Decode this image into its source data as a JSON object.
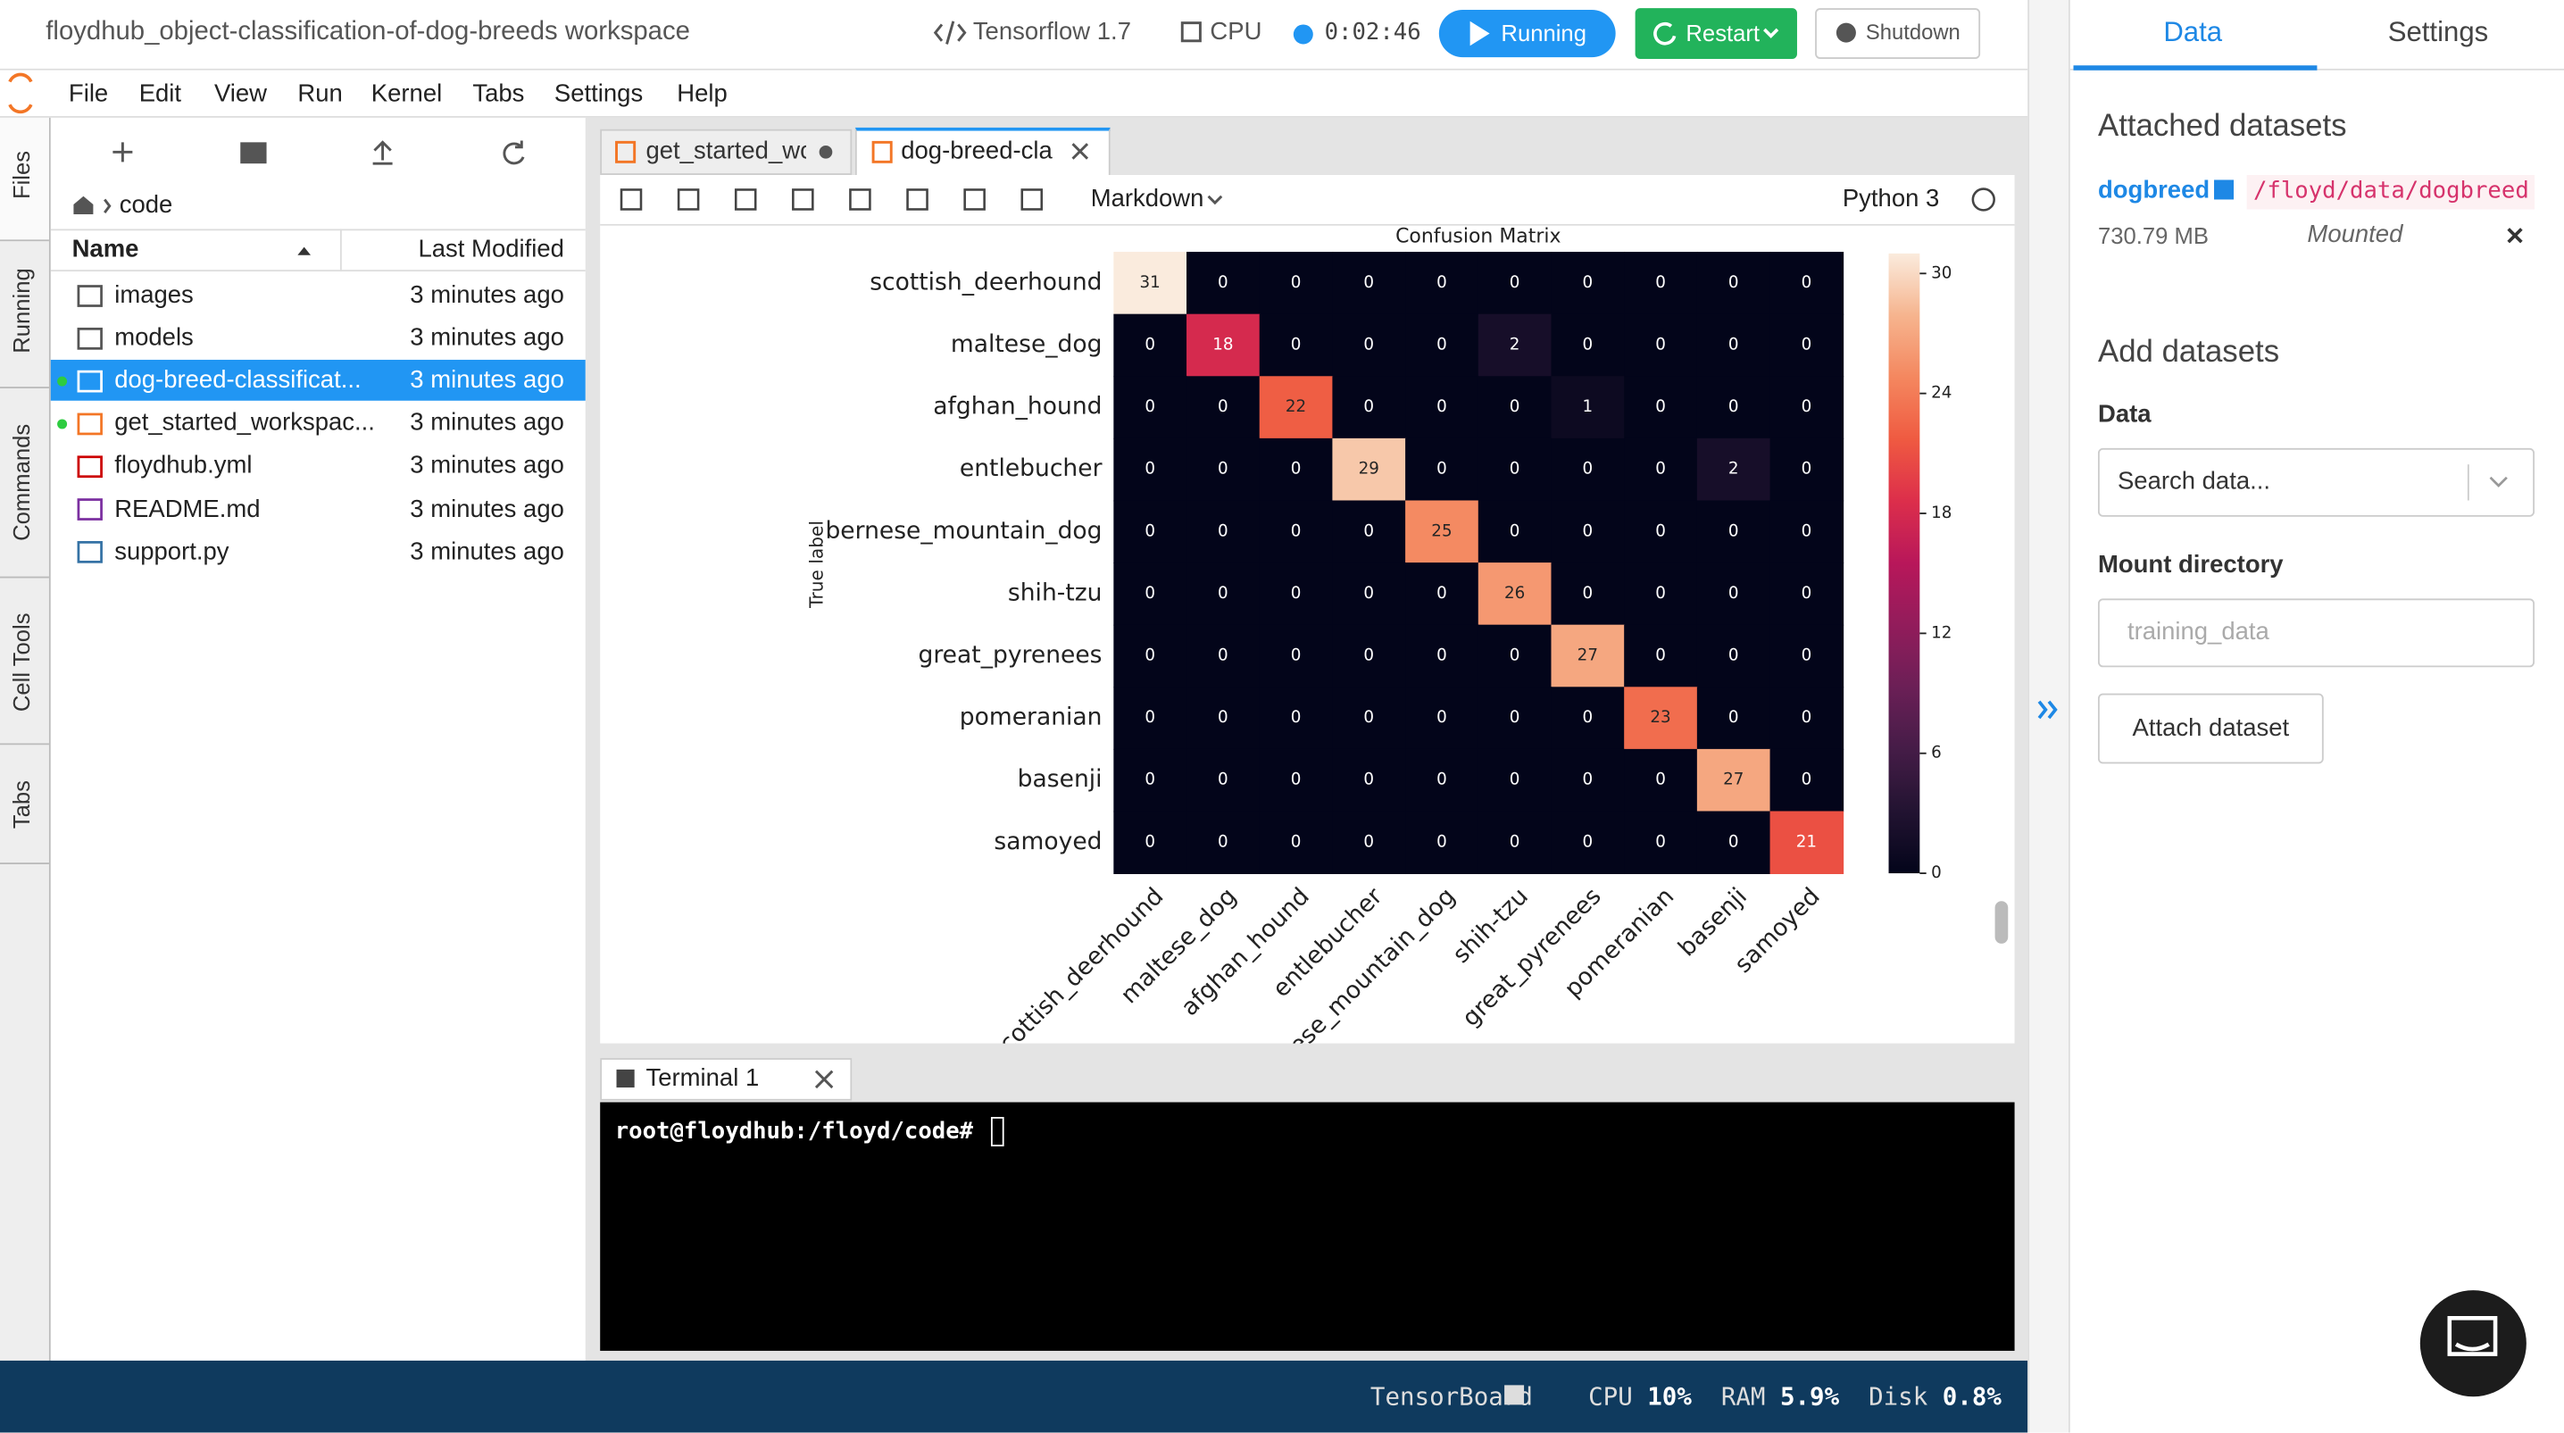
{
  "header": {
    "title": "floydhub_object-classification-of-dog-breeds workspace",
    "environment": "Tensorflow 1.7",
    "machine": "CPU",
    "timer": "0:02:46",
    "buttons": [
      "Running",
      "Restart",
      "Shutdown"
    ]
  },
  "menu": [
    "File",
    "Edit",
    "View",
    "Run",
    "Kernel",
    "Tabs",
    "Settings",
    "Help"
  ],
  "side_tabs": [
    "Files",
    "Running",
    "Commands",
    "Cell Tools",
    "Tabs"
  ],
  "file_browser": {
    "path": "code",
    "columns": [
      "Name",
      "Last Modified"
    ],
    "files": [
      {
        "name": "images",
        "modified": "3 minutes ago"
      },
      {
        "name": "models",
        "modified": "3 minutes ago"
      },
      {
        "name": "dog-breed-classificat...",
        "modified": "3 minutes ago"
      },
      {
        "name": "get_started_workspac...",
        "modified": "3 minutes ago"
      },
      {
        "name": "floydhub.yml",
        "modified": "3 minutes ago"
      },
      {
        "name": "README.md",
        "modified": "3 minutes ago"
      },
      {
        "name": "support.py",
        "modified": "3 minutes ago"
      }
    ]
  },
  "notebook": {
    "tabs": [
      "get_started_wc",
      "dog-breed-cla"
    ],
    "cell_type": "Markdown",
    "kernel": "Python 3"
  },
  "chart_data": {
    "type": "heatmap",
    "title": "Confusion Matrix",
    "ylabel": "True label",
    "rows": [
      "scottish_deerhound",
      "maltese_dog",
      "afghan_hound",
      "entlebucher",
      "bernese_mountain_dog",
      "shih-tzu",
      "great_pyrenees",
      "pomeranian",
      "basenji",
      "samoyed"
    ],
    "columns": [
      "scottish_deerhound",
      "maltese_dog",
      "afghan_hound",
      "entlebucher",
      "bernese_mountain_dog",
      "shih-tzu",
      "great_pyrenees",
      "pomeranian",
      "basenji",
      "samoyed"
    ],
    "values": [
      [
        31,
        0,
        0,
        0,
        0,
        0,
        0,
        0,
        0,
        0
      ],
      [
        0,
        18,
        0,
        0,
        0,
        2,
        0,
        0,
        0,
        0
      ],
      [
        0,
        0,
        22,
        0,
        0,
        0,
        1,
        0,
        0,
        0
      ],
      [
        0,
        0,
        0,
        29,
        0,
        0,
        0,
        0,
        2,
        0
      ],
      [
        0,
        0,
        0,
        0,
        25,
        0,
        0,
        0,
        0,
        0
      ],
      [
        0,
        0,
        0,
        0,
        0,
        26,
        0,
        0,
        0,
        0
      ],
      [
        0,
        0,
        0,
        0,
        0,
        0,
        27,
        0,
        0,
        0
      ],
      [
        0,
        0,
        0,
        0,
        0,
        0,
        0,
        23,
        0,
        0
      ],
      [
        0,
        0,
        0,
        0,
        0,
        0,
        0,
        0,
        27,
        0
      ],
      [
        0,
        0,
        0,
        0,
        0,
        0,
        0,
        0,
        0,
        21
      ]
    ],
    "clim": [
      0,
      31
    ],
    "colorbar_ticks": [
      0,
      6,
      12,
      18,
      24,
      30
    ],
    "colormap": "rocket"
  },
  "terminal": {
    "tab": "Terminal 1",
    "prompt": "root@floydhub:/floyd/code#"
  },
  "status_bar": [
    {
      "label": "TensorBoard"
    },
    {
      "label": "CPU",
      "value": "10%"
    },
    {
      "label": "RAM",
      "value": "5.9%"
    },
    {
      "label": "Disk",
      "value": "0.8%"
    }
  ],
  "panel": {
    "tabs": [
      "Data",
      "Settings"
    ],
    "attached_title": "Attached datasets",
    "dataset": {
      "name": "dogbreed",
      "path": "/floyd/data/dogbreed",
      "size": "730.79 MB",
      "status": "Mounted"
    },
    "add_title": "Add datasets",
    "data_label": "Data",
    "search_placeholder": "Search data...",
    "mount_label": "Mount directory",
    "mount_placeholder": "training_data",
    "button": "Attach dataset"
  }
}
